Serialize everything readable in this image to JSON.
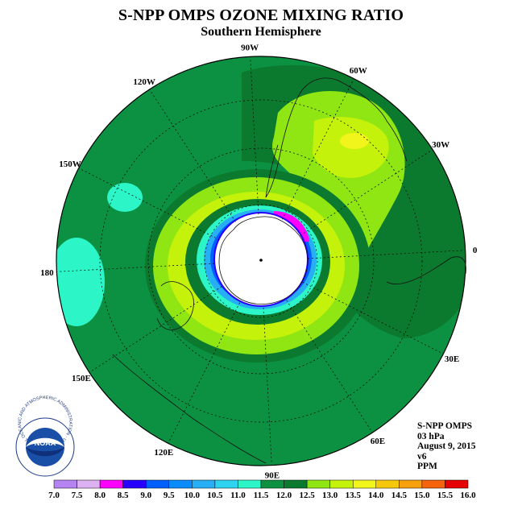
{
  "header": {
    "title": "S-NPP OMPS OZONE MIXING RATIO",
    "subtitle": "Southern Hemisphere"
  },
  "map": {
    "longitude_labels": [
      "0",
      "30E",
      "60E",
      "90E",
      "120E",
      "150E",
      "180",
      "150W",
      "120W",
      "90W",
      "60W",
      "30W"
    ]
  },
  "info": {
    "instrument": "S-NPP OMPS",
    "level": "03 hPa",
    "date": "August 9, 2015",
    "version": "v6",
    "units": "PPM"
  },
  "logo": {
    "text": "NOAA",
    "ring_text": "NATIONAL OCEANIC AND ATMOSPHERIC ADMINISTRATION · U.S. DEPARTMENT OF COMMERCE"
  },
  "colorbar": {
    "ticks": [
      "7.0",
      "7.5",
      "8.0",
      "8.5",
      "9.0",
      "9.5",
      "10.0",
      "10.5",
      "11.0",
      "11.5",
      "12.0",
      "12.5",
      "13.0",
      "13.5",
      "14.0",
      "14.5",
      "15.0",
      "15.5",
      "16.0"
    ],
    "colors": [
      "#b583f2",
      "#dcb1f2",
      "#ff00ff",
      "#2800ff",
      "#0060ff",
      "#0a8cff",
      "#27aef5",
      "#2ed3f0",
      "#2cf5c8",
      "#0c9142",
      "#0b7a2f",
      "#90e612",
      "#c5f20a",
      "#f2f51c",
      "#f5c80c",
      "#f5a00c",
      "#f5640c",
      "#e60000",
      "#8b4a2e"
    ]
  }
}
